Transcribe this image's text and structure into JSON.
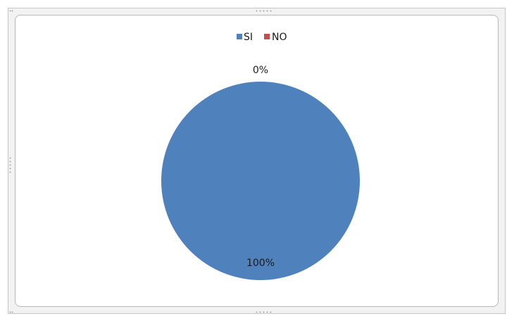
{
  "chart_data": {
    "type": "pie",
    "categories": [
      "SI",
      "NO"
    ],
    "values": [
      100,
      0
    ],
    "data_labels": [
      "100%",
      "0%"
    ],
    "colors": [
      "#4f81bd",
      "#c0504d"
    ],
    "legend_position": "top",
    "title": ""
  }
}
